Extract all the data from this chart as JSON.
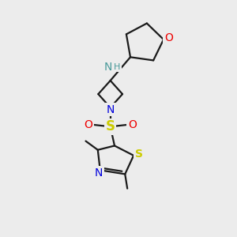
{
  "background_color": "#ececec",
  "bond_color": "#1a1a1a",
  "bond_width": 1.6,
  "atom_colors": {
    "N_blue": "#0000dd",
    "N_teal": "#4a9a9a",
    "O_red": "#ee0000",
    "S_sulfonyl": "#cccc00",
    "S_thiazole": "#cccc00",
    "C": "#1a1a1a"
  },
  "font_size": 9,
  "fig_width": 3.0,
  "fig_height": 3.0,
  "dpi": 100,
  "xlim": [
    0,
    10
  ],
  "ylim": [
    0,
    10
  ]
}
